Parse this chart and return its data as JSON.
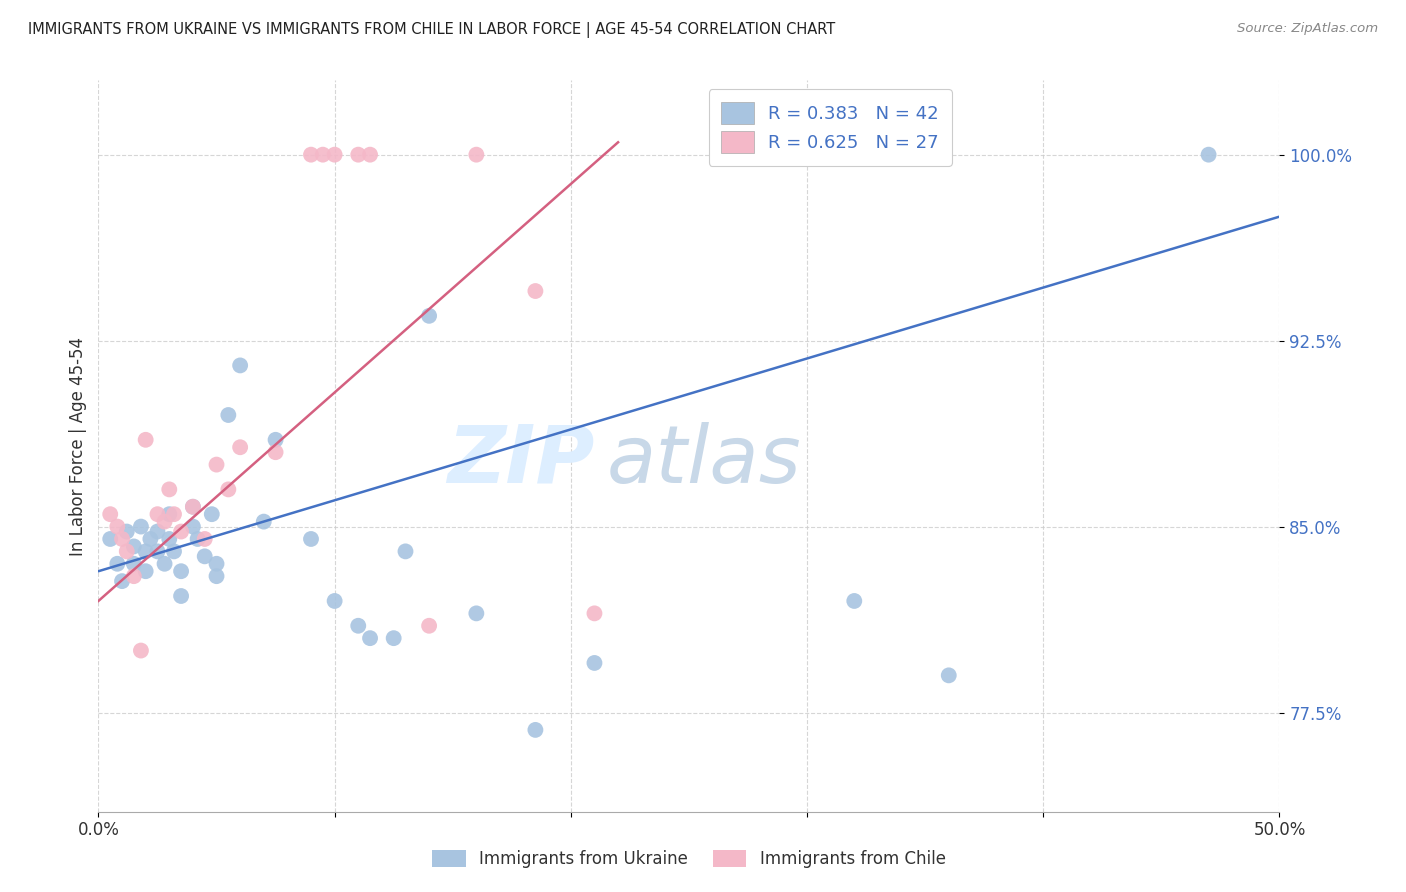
{
  "title": "IMMIGRANTS FROM UKRAINE VS IMMIGRANTS FROM CHILE IN LABOR FORCE | AGE 45-54 CORRELATION CHART",
  "source": "Source: ZipAtlas.com",
  "ylabel": "In Labor Force | Age 45-54",
  "y_ticks": [
    77.5,
    85.0,
    92.5,
    100.0
  ],
  "y_tick_labels": [
    "77.5%",
    "85.0%",
    "92.5%",
    "100.0%"
  ],
  "xlim": [
    0.0,
    0.5
  ],
  "ylim": [
    73.5,
    103.0
  ],
  "legend_r_ukraine": "R = 0.383",
  "legend_n_ukraine": "N = 42",
  "legend_r_chile": "R = 0.625",
  "legend_n_chile": "N = 27",
  "watermark_zip": "ZIP",
  "watermark_atlas": "atlas",
  "ukraine_color": "#a8c4e0",
  "chile_color": "#f4b8c8",
  "ukraine_line_color": "#4472c4",
  "chile_line_color": "#d46080",
  "ukraine_points_x": [
    0.005,
    0.008,
    0.01,
    0.012,
    0.015,
    0.015,
    0.018,
    0.02,
    0.02,
    0.022,
    0.025,
    0.025,
    0.028,
    0.03,
    0.03,
    0.032,
    0.035,
    0.035,
    0.04,
    0.04,
    0.042,
    0.045,
    0.048,
    0.05,
    0.05,
    0.055,
    0.06,
    0.07,
    0.075,
    0.09,
    0.1,
    0.11,
    0.115,
    0.125,
    0.13,
    0.14,
    0.16,
    0.185,
    0.21,
    0.32,
    0.36,
    0.47
  ],
  "ukraine_points_y": [
    84.5,
    83.5,
    82.8,
    84.8,
    84.2,
    83.5,
    85.0,
    84.0,
    83.2,
    84.5,
    84.8,
    84.0,
    83.5,
    85.5,
    84.5,
    84.0,
    83.2,
    82.2,
    85.8,
    85.0,
    84.5,
    83.8,
    85.5,
    83.5,
    83.0,
    89.5,
    91.5,
    85.2,
    88.5,
    84.5,
    82.0,
    81.0,
    80.5,
    80.5,
    84.0,
    93.5,
    81.5,
    76.8,
    79.5,
    82.0,
    79.0,
    100.0
  ],
  "chile_points_x": [
    0.005,
    0.008,
    0.01,
    0.012,
    0.015,
    0.018,
    0.02,
    0.025,
    0.028,
    0.03,
    0.032,
    0.035,
    0.04,
    0.045,
    0.05,
    0.055,
    0.06,
    0.075,
    0.09,
    0.095,
    0.1,
    0.11,
    0.115,
    0.14,
    0.16,
    0.185,
    0.21
  ],
  "chile_points_y": [
    85.5,
    85.0,
    84.5,
    84.0,
    83.0,
    80.0,
    88.5,
    85.5,
    85.2,
    86.5,
    85.5,
    84.8,
    85.8,
    84.5,
    87.5,
    86.5,
    88.2,
    88.0,
    100.0,
    100.0,
    100.0,
    100.0,
    100.0,
    81.0,
    100.0,
    94.5,
    81.5
  ],
  "ukraine_trendline_x": [
    0.0,
    0.5
  ],
  "ukraine_trendline_y": [
    83.2,
    97.5
  ],
  "chile_trendline_x": [
    0.0,
    0.22
  ],
  "chile_trendline_y": [
    82.0,
    100.5
  ]
}
